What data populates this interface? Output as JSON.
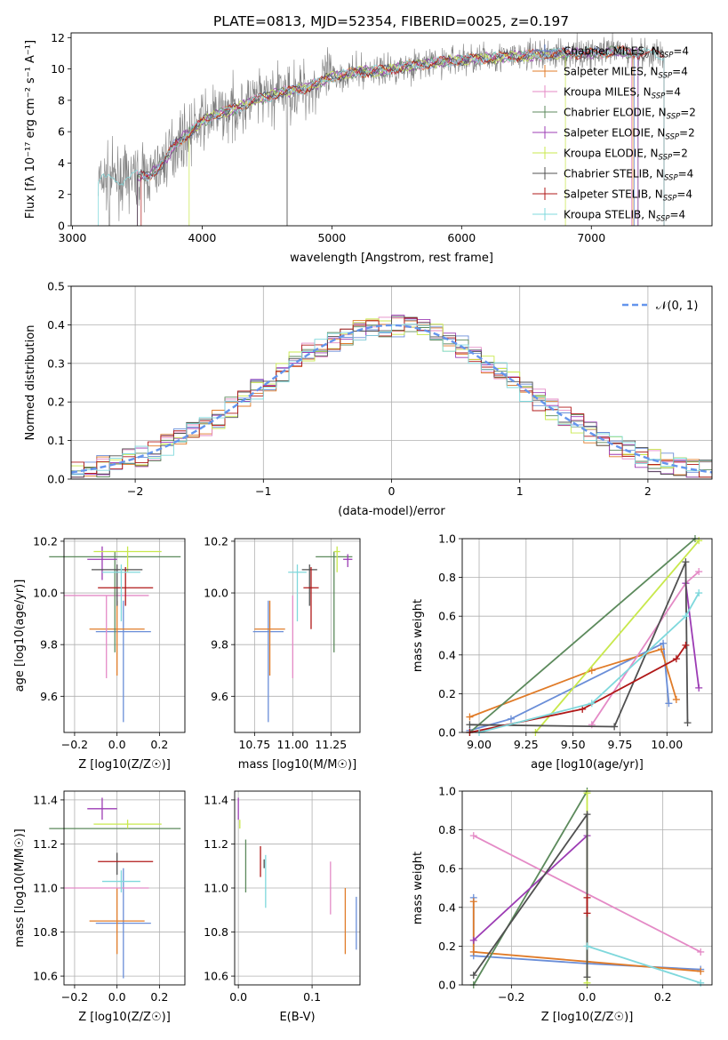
{
  "figure_title": "PLATE=0813, MJD=52354, FIBERID=0025, z=0.197",
  "colors": {
    "grid": "#b0b0b0",
    "spectrum": "#808080",
    "normal": "#6495ed",
    "models": [
      "#6a8ed8",
      "#e07b28",
      "#e48ac6",
      "#5c8a5c",
      "#9c3cb4",
      "#c8e84c",
      "#505050",
      "#b01818",
      "#7fd8dc"
    ]
  },
  "chart_data": [
    {
      "id": "spectrum",
      "type": "line",
      "title": "PLATE=0813, MJD=52354, FIBERID=0025, z=0.197",
      "xlabel": "wavelength [Angstrom, rest frame]",
      "ylabel": "Flux [fλ 10⁻¹⁷ erg cm⁻² s⁻¹ A⁻¹]",
      "xlim": [
        2990,
        7930
      ],
      "ylim": [
        0,
        12.3
      ],
      "xticks": [
        3000,
        4000,
        5000,
        6000,
        7000
      ],
      "yticks": [
        0,
        2,
        4,
        6,
        8,
        10,
        12
      ],
      "grid": false,
      "legend_position": "right",
      "legend": [
        "Chabrier MILES, N_SSP=4",
        "Salpeter MILES, N_SSP=4",
        "Kroupa MILES, N_SSP=4",
        "Chabrier ELODIE, N_SSP=2",
        "Salpeter ELODIE, N_SSP=2",
        "Kroupa ELODIE, N_SSP=2",
        "Chabrier STELIB, N_SSP=4",
        "Salpeter STELIB, N_SSP=4",
        "Kroupa STELIB, N_SSP=4"
      ],
      "continuum": {
        "x": [
          3200,
          3300,
          3400,
          3500,
          3600,
          3700,
          3800,
          3900,
          4000,
          4100,
          4200,
          4300,
          4400,
          4500,
          4600,
          4700,
          4800,
          4900,
          5000,
          5200,
          5400,
          5600,
          5800,
          6000,
          6200,
          6400,
          6600,
          6800,
          7000,
          7200,
          7400,
          7600,
          7800
        ],
        "y": [
          2.8,
          3.1,
          2.9,
          3.2,
          3.2,
          4.0,
          5.3,
          5.9,
          6.6,
          7.1,
          7.3,
          7.6,
          8.0,
          8.2,
          8.5,
          8.6,
          8.8,
          9.1,
          9.5,
          9.8,
          9.9,
          10.2,
          10.4,
          10.6,
          10.7,
          10.8,
          10.9,
          11.0,
          11.0,
          11.1,
          11.0,
          10.9,
          10.8
        ]
      },
      "model_ranges": [
        [
          3500,
          7330
        ],
        [
          3500,
          7320
        ],
        [
          3500,
          7310
        ],
        [
          3500,
          7360
        ],
        [
          3500,
          7360
        ],
        [
          3900,
          6800
        ],
        [
          3500,
          7560
        ],
        [
          3530,
          7560
        ],
        [
          3200,
          7560
        ]
      ]
    },
    {
      "id": "residuals",
      "type": "histogram",
      "xlabel": "(data-model)/error",
      "ylabel": "Normed distribution",
      "xlim": [
        -2.5,
        2.5
      ],
      "ylim": [
        0,
        0.5
      ],
      "xticks": [
        -2,
        -1,
        0,
        1,
        2
      ],
      "yticks": [
        0.0,
        0.1,
        0.2,
        0.3,
        0.4,
        0.5
      ],
      "grid": true,
      "legend_position": "top-right",
      "legend_label": "𝒩(0, 1)",
      "bin_width": 0.1
    },
    {
      "id": "age_vs_Z",
      "type": "scatter",
      "xlabel": "Z [log10(Z/Z☉)]",
      "ylabel": "age  [log10(age/yr)]",
      "xlim": [
        -0.25,
        0.32
      ],
      "ylim": [
        9.46,
        10.21
      ],
      "xticks": [
        -0.2,
        0.0,
        0.2
      ],
      "yticks": [
        9.6,
        9.8,
        10.0,
        10.2
      ],
      "points": [
        {
          "x": 0.03,
          "y": 9.85,
          "xerr": 0.13,
          "yerr": [
            0.35,
            0.12
          ]
        },
        {
          "x": 0.0,
          "y": 9.86,
          "xerr": 0.13,
          "yerr": [
            0.18,
            0.11
          ]
        },
        {
          "x": -0.05,
          "y": 9.99,
          "xerr": 0.2,
          "yerr": [
            0.32,
            0.0
          ]
        },
        {
          "x": -0.01,
          "y": 10.14,
          "xerr": 0.31,
          "yerr": [
            0.37,
            0.02
          ]
        },
        {
          "x": -0.07,
          "y": 10.13,
          "xerr": 0.07,
          "yerr": [
            0.08,
            0.05
          ]
        },
        {
          "x": 0.05,
          "y": 10.16,
          "xerr": 0.16,
          "yerr": [
            0.08,
            0.02
          ]
        },
        {
          "x": 0.0,
          "y": 10.09,
          "xerr": 0.12,
          "yerr": [
            0.14,
            0.02
          ]
        },
        {
          "x": 0.04,
          "y": 10.02,
          "xerr": 0.13,
          "yerr": [
            0.07,
            0.08
          ]
        },
        {
          "x": 0.02,
          "y": 10.08,
          "xerr": 0.09,
          "yerr": [
            0.19,
            0.03
          ]
        }
      ]
    },
    {
      "id": "age_vs_mass",
      "type": "scatter",
      "xlabel": "mass [log10(M/M☉)]",
      "ylabel": "",
      "xlim": [
        10.62,
        11.44
      ],
      "ylim": [
        9.46,
        10.21
      ],
      "xticks": [
        10.75,
        11.0,
        11.25
      ],
      "yticks": [
        9.6,
        9.8,
        10.0,
        10.2
      ],
      "points": [
        {
          "x": 10.84,
          "y": 9.85,
          "xerr": 0.1,
          "yerr": [
            0.35,
            0.12
          ]
        },
        {
          "x": 10.85,
          "y": 9.86,
          "xerr": 0.1,
          "yerr": [
            0.18,
            0.11
          ]
        },
        {
          "x": 11.0,
          "y": 9.99,
          "xerr": 0.0,
          "yerr": [
            0.32,
            0.0
          ]
        },
        {
          "x": 11.27,
          "y": 10.14,
          "xerr": 0.12,
          "yerr": [
            0.37,
            0.02
          ]
        },
        {
          "x": 11.36,
          "y": 10.13,
          "xerr": 0.03,
          "yerr": [
            0.03,
            0.02
          ]
        },
        {
          "x": 11.29,
          "y": 10.16,
          "xerr": 0.02,
          "yerr": [
            0.08,
            0.02
          ]
        },
        {
          "x": 11.11,
          "y": 10.09,
          "xerr": 0.05,
          "yerr": [
            0.14,
            0.02
          ]
        },
        {
          "x": 11.12,
          "y": 10.02,
          "xerr": 0.05,
          "yerr": [
            0.16,
            0.08
          ]
        },
        {
          "x": 11.03,
          "y": 10.08,
          "xerr": 0.06,
          "yerr": [
            0.19,
            0.03
          ]
        }
      ]
    },
    {
      "id": "weight_vs_age",
      "type": "line",
      "xlabel": "age  [log10(age/yr)]",
      "ylabel": "mass weight",
      "xlim": [
        8.91,
        10.24
      ],
      "ylim": [
        0,
        1
      ],
      "xticks": [
        9.0,
        9.25,
        9.5,
        9.75,
        10.0
      ],
      "yticks": [
        0.0,
        0.2,
        0.4,
        0.6,
        0.8,
        1.0
      ],
      "grid": true,
      "series": [
        {
          "x": [
            8.95,
            9.17,
            9.98,
            10.01
          ],
          "y": [
            0.01,
            0.07,
            0.46,
            0.15
          ]
        },
        {
          "x": [
            8.95,
            9.6,
            9.97,
            10.05
          ],
          "y": [
            0.08,
            0.32,
            0.43,
            0.17
          ]
        },
        {
          "x": [
            9.6,
            10.1,
            10.17
          ],
          "y": [
            0.04,
            0.77,
            0.83
          ]
        },
        {
          "x": [
            8.95,
            10.15
          ],
          "y": [
            0.0,
            1.0
          ]
        },
        {
          "x": [
            10.1,
            10.17
          ],
          "y": [
            0.77,
            0.23
          ]
        },
        {
          "x": [
            9.3,
            10.17
          ],
          "y": [
            0.0,
            0.99
          ]
        },
        {
          "x": [
            8.95,
            9.72,
            10.1,
            10.11
          ],
          "y": [
            0.04,
            0.03,
            0.88,
            0.05
          ]
        },
        {
          "x": [
            8.95,
            9.55,
            10.05,
            10.1
          ],
          "y": [
            0.0,
            0.12,
            0.38,
            0.45
          ]
        },
        {
          "x": [
            9.0,
            9.6,
            10.1,
            10.17
          ],
          "y": [
            0.0,
            0.15,
            0.6,
            0.72
          ]
        }
      ]
    },
    {
      "id": "mass_vs_Z",
      "type": "scatter",
      "xlabel": "Z [log10(Z/Z☉)]",
      "ylabel": "mass [log10(M/M☉)]",
      "xlim": [
        -0.25,
        0.32
      ],
      "ylim": [
        10.56,
        11.44
      ],
      "xticks": [
        -0.2,
        0.0,
        0.2
      ],
      "yticks": [
        10.6,
        10.8,
        11.0,
        11.2,
        11.4
      ],
      "points": [
        {
          "x": 0.03,
          "y": 10.84,
          "xerr": 0.13,
          "yerr": 0.25
        },
        {
          "x": 0.0,
          "y": 10.85,
          "xerr": 0.13,
          "yerr": 0.15
        },
        {
          "x": -0.05,
          "y": 11.0,
          "xerr": 0.2,
          "yerr": 0.0
        },
        {
          "x": -0.01,
          "y": 11.27,
          "xerr": 0.31,
          "yerr": 0.0
        },
        {
          "x": -0.07,
          "y": 11.36,
          "xerr": 0.07,
          "yerr": 0.05
        },
        {
          "x": 0.05,
          "y": 11.29,
          "xerr": 0.16,
          "yerr": 0.02
        },
        {
          "x": 0.0,
          "y": 11.11,
          "xerr": 0.0,
          "yerr": 0.05
        },
        {
          "x": 0.04,
          "y": 11.12,
          "xerr": 0.13,
          "yerr": 0.0
        },
        {
          "x": 0.02,
          "y": 11.03,
          "xerr": 0.09,
          "yerr": 0.05
        }
      ]
    },
    {
      "id": "mass_vs_ebv",
      "type": "scatter",
      "xlabel": "E(B-V)",
      "ylabel": "",
      "xlim": [
        -0.005,
        0.165
      ],
      "ylim": [
        10.56,
        11.44
      ],
      "xticks": [
        0.0,
        0.1
      ],
      "yticks": [
        10.6,
        10.8,
        11.0,
        11.2,
        11.4
      ],
      "points": [
        {
          "x": 0.16,
          "y": 10.84,
          "yerr": 0.12
        },
        {
          "x": 0.145,
          "y": 10.85,
          "yerr": 0.15
        },
        {
          "x": 0.125,
          "y": 11.0,
          "yerr": 0.12
        },
        {
          "x": 0.01,
          "y": 11.1,
          "yerr": 0.12
        },
        {
          "x": 0.0,
          "y": 11.36,
          "yerr": 0.05
        },
        {
          "x": 0.002,
          "y": 11.29,
          "yerr": 0.02
        },
        {
          "x": 0.035,
          "y": 11.11,
          "yerr": 0.02
        },
        {
          "x": 0.03,
          "y": 11.12,
          "yerr": 0.07
        },
        {
          "x": 0.037,
          "y": 11.03,
          "yerr": 0.12
        }
      ]
    },
    {
      "id": "weight_vs_Z",
      "type": "line",
      "xlabel": "Z [log10(Z/Z☉)]",
      "ylabel": "mass weight",
      "xlim": [
        -0.33,
        0.33
      ],
      "ylim": [
        0,
        1
      ],
      "xticks": [
        -0.2,
        0.0,
        0.2
      ],
      "yticks": [
        0.0,
        0.2,
        0.4,
        0.6,
        0.8,
        1.0
      ],
      "grid": true,
      "series": [
        {
          "x": [
            -0.3,
            -0.3,
            0.0,
            0.3
          ],
          "y": [
            0.45,
            0.15,
            0.11,
            0.08
          ]
        },
        {
          "x": [
            -0.3,
            -0.3,
            0.0,
            0.3
          ],
          "y": [
            0.43,
            0.17,
            0.12,
            0.07
          ]
        },
        {
          "x": [
            -0.3,
            0.3
          ],
          "y": [
            0.77,
            0.17
          ]
        },
        {
          "x": [
            -0.3,
            0.0
          ],
          "y": [
            0.0,
            1.0
          ]
        },
        {
          "x": [
            -0.3,
            0.0
          ],
          "y": [
            0.23,
            0.77
          ]
        },
        {
          "x": [
            0.0,
            0.0
          ],
          "y": [
            0.01,
            0.99
          ]
        },
        {
          "x": [
            -0.3,
            0.0,
            0.0
          ],
          "y": [
            0.05,
            0.88,
            0.04
          ]
        },
        {
          "x": [
            0.0,
            0.0
          ],
          "y": [
            0.37,
            0.45
          ]
        },
        {
          "x": [
            0.0,
            0.3
          ],
          "y": [
            0.2,
            0.01
          ]
        }
      ]
    }
  ]
}
